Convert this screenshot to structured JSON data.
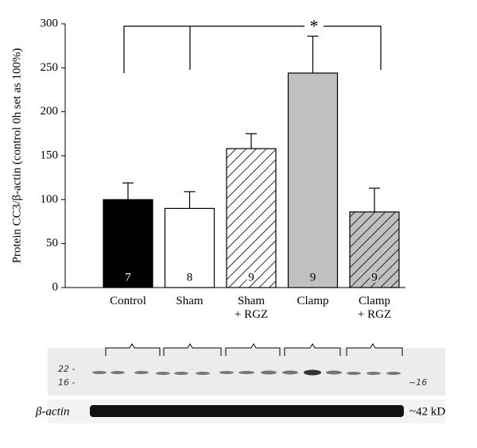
{
  "chart_data": {
    "type": "bar",
    "y_label": "Protein CC3/β-actin (control 0h set as 100%)",
    "annotation": "*",
    "categories": [
      "Control",
      "Sham",
      "Sham\n+ RGZ",
      "Clamp",
      "Clamp\n+ RGZ"
    ],
    "values": [
      100,
      90,
      158,
      244,
      86
    ],
    "errors": [
      19,
      19,
      17,
      42,
      27
    ],
    "value_labels": [
      "7",
      "8",
      "9",
      "9",
      "9"
    ],
    "colors": [
      "#000000",
      "#ffffff",
      "#ffffff",
      "#c0c0c0",
      "#c0c0c0"
    ],
    "hatch": [
      false,
      false,
      true,
      false,
      true
    ],
    "ylim": [
      0,
      300
    ],
    "yticks": [
      0,
      50,
      100,
      150,
      200,
      250,
      300
    ]
  },
  "blot": {
    "marker_left": [
      "22 -",
      "16 -"
    ],
    "marker_right": "~16",
    "loading_label": "β-actin",
    "loading_size": "~42 kD"
  }
}
